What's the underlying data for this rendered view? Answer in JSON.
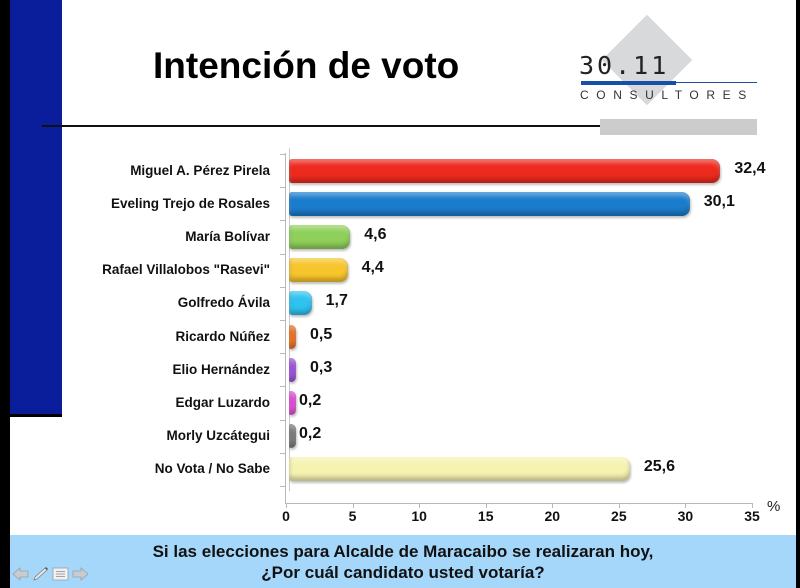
{
  "slide": {
    "title": "Intención de voto",
    "logo": {
      "number": "30.11",
      "subtitle": "CONSULTORES"
    },
    "question_line1": "Si las elecciones para Alcalde de Maracaibo se realizaran hoy,",
    "question_line2": "¿Por cuál candidato usted votaría?",
    "colors": {
      "left_bar": "#0a1e9c",
      "footer_bg": "#a5d7fb",
      "logo_blue": "#1a4fa8"
    }
  },
  "nav": {
    "prev": "arrow-left-icon",
    "pen": "pen-icon",
    "menu": "menu-icon",
    "next": "arrow-right-icon"
  },
  "chart_data": {
    "type": "bar",
    "orientation": "horizontal",
    "title": "Intención de voto",
    "xlabel": "%",
    "ylabel": "",
    "xlim": [
      0,
      35
    ],
    "x_ticks": [
      "0",
      "5",
      "10",
      "15",
      "20",
      "25",
      "30",
      "35"
    ],
    "grid": false,
    "legend": null,
    "categories": [
      "Miguel A. Pérez Pirela",
      "Eveling Trejo de Rosales",
      "María Bolívar",
      "Rafael Villalobos \"Rasevi\"",
      "Golfredo Ávila",
      "Ricardo Núñez",
      "Elio Hernández",
      "Edgar Luzardo",
      "Morly Uzcátegui",
      "No Vota / No Sabe"
    ],
    "values": [
      32.4,
      30.1,
      4.6,
      4.4,
      1.7,
      0.5,
      0.3,
      0.2,
      0.2,
      25.6
    ],
    "value_labels": [
      "32,4",
      "30,1",
      "4,6",
      "4,4",
      "1,7",
      "0,5",
      "0,3",
      "0,2",
      "0,2",
      "25,6"
    ],
    "bar_colors": [
      "#ee2a1e",
      "#1a7ccc",
      "#8fd05a",
      "#f7c52d",
      "#2ec3ef",
      "#ee6f1f",
      "#9b4fe0",
      "#e44ad9",
      "#7a7a7a",
      "#f6f3b0"
    ],
    "unit": "%"
  }
}
